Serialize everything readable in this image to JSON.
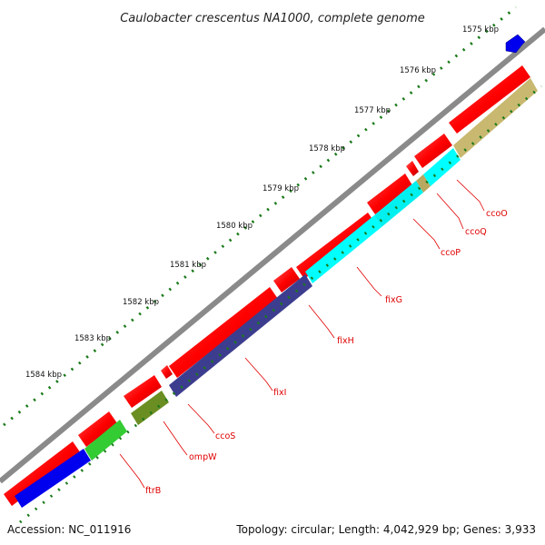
{
  "title": "Caulobacter crescentus NA1000, complete genome",
  "accession": "Accession: NC_011916",
  "genome_info": "Topology: circular; Length: 4,042,929 bp; Genes: 3,933",
  "colors": {
    "backbone": "#8a8a8a",
    "cds": "#ff0000",
    "tick": "#1a7a1a",
    "label_line": "#e00000",
    "blue_gene": "#0000ee",
    "green_gene": "#33cc33",
    "olive_gene": "#6b8e23",
    "navy_gene": "#3d3d8f",
    "cyan_gene": "#00ffff",
    "tan_gene": "#c8b870"
  },
  "kbp_labels": [
    "1575 kbp",
    "1576 kbp",
    "1577 kbp",
    "1578 kbp",
    "1579 kbp",
    "1580 kbp",
    "1581 kbp",
    "1582 kbp",
    "1583 kbp",
    "1584 kbp"
  ],
  "gene_labels": [
    {
      "name": "ccoO"
    },
    {
      "name": "ccoQ"
    },
    {
      "name": "ccoP"
    },
    {
      "name": "fixG"
    },
    {
      "name": "fixH"
    },
    {
      "name": "fixI"
    },
    {
      "name": "ccoS"
    },
    {
      "name": "ompW"
    },
    {
      "name": "ftrB"
    }
  ]
}
